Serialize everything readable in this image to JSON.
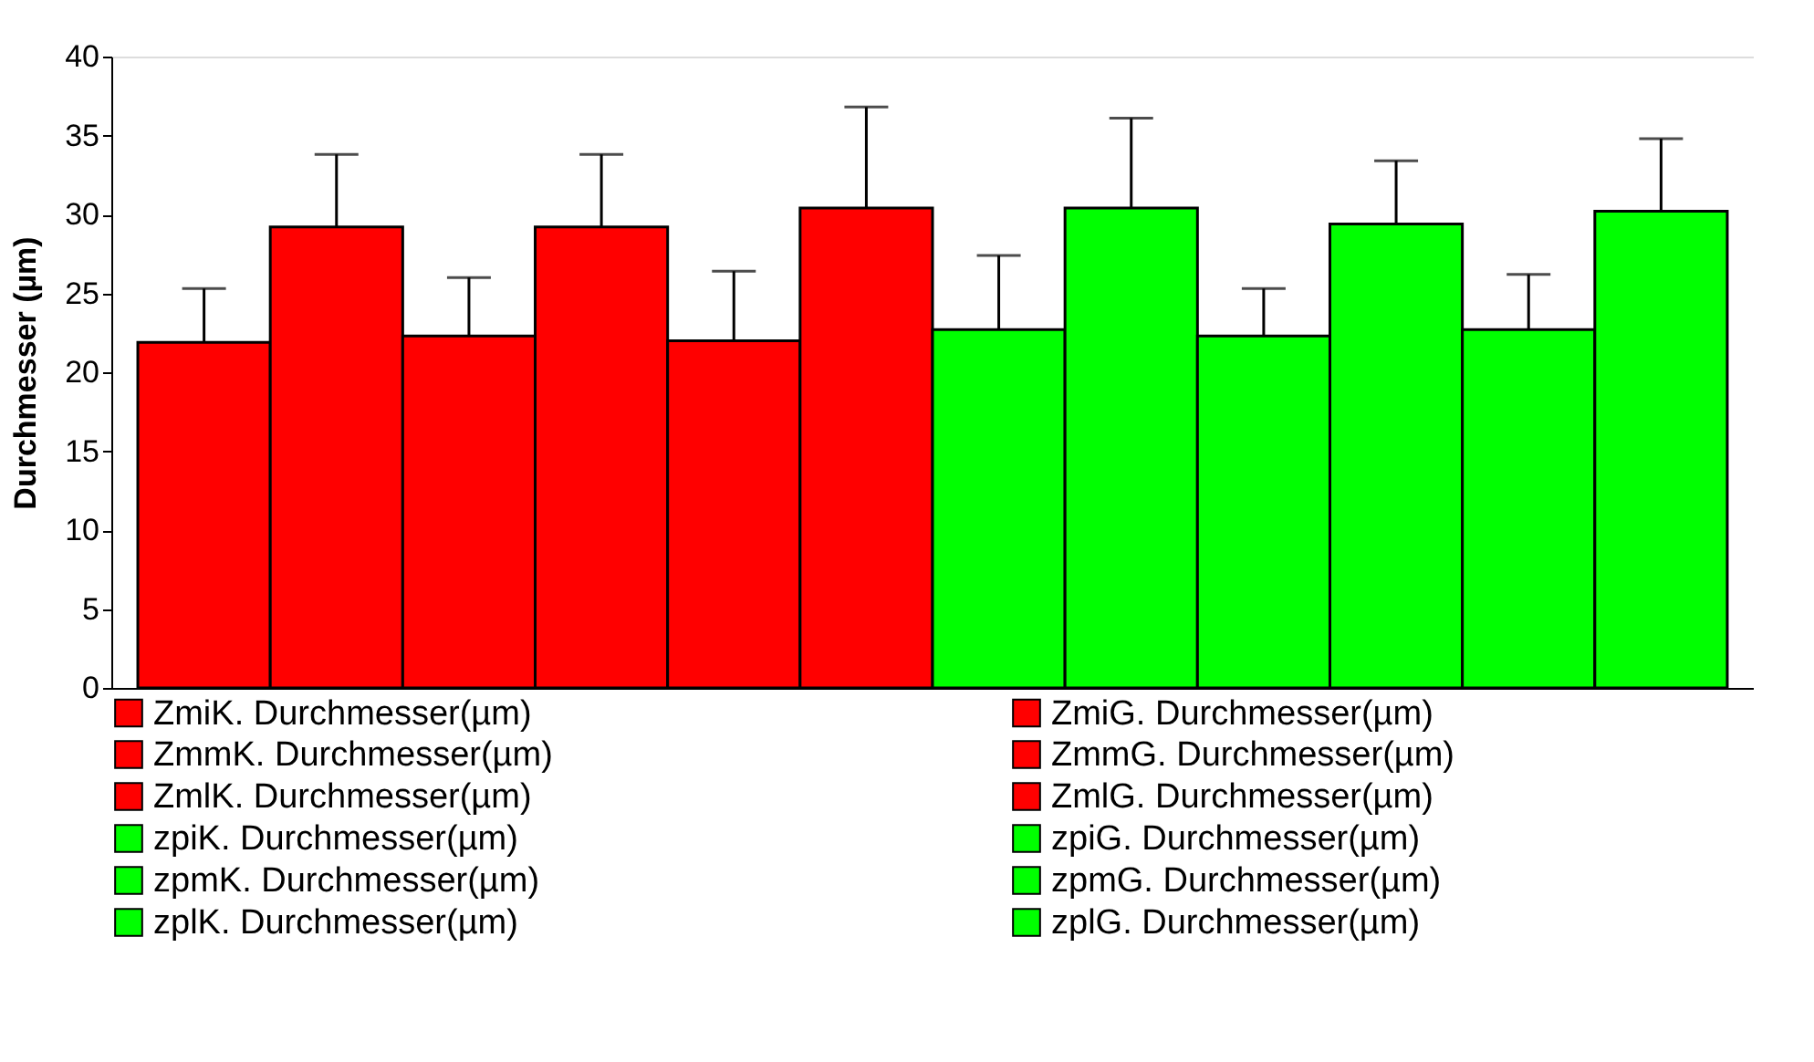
{
  "chart_data": {
    "type": "bar",
    "ylabel": "Durchmesser (µm)",
    "categories": [
      null,
      null,
      null,
      null,
      null,
      null,
      null,
      null,
      null,
      null,
      null,
      null
    ],
    "ylim": [
      0,
      40
    ],
    "yticks": [
      0,
      5,
      10,
      15,
      20,
      25,
      30,
      35,
      40
    ],
    "grid": false,
    "legend": "bottom",
    "series": [
      {
        "name": "ZmiK. Durchmesser(µm)",
        "color": "#ff0000",
        "values": [
          21.9,
          null,
          null,
          null,
          null,
          null,
          null,
          null,
          null,
          null,
          null,
          null
        ],
        "errors": [
          [
            21.9,
            25.3
          ],
          null,
          null,
          null,
          null,
          null,
          null,
          null,
          null,
          null,
          null,
          null
        ]
      },
      {
        "name": "ZmiG. Durchmesser(µm)",
        "color": "#ff0000",
        "values": [
          null,
          29.2,
          null,
          null,
          null,
          null,
          null,
          null,
          null,
          null,
          null,
          null
        ],
        "errors": [
          null,
          [
            29.2,
            33.8
          ],
          null,
          null,
          null,
          null,
          null,
          null,
          null,
          null,
          null,
          null
        ]
      },
      {
        "name": "ZmmK. Durchmesser(µm)",
        "color": "#ff0000",
        "values": [
          null,
          null,
          22.3,
          null,
          null,
          null,
          null,
          null,
          null,
          null,
          null,
          null
        ],
        "errors": [
          null,
          null,
          [
            22.3,
            26.0
          ],
          null,
          null,
          null,
          null,
          null,
          null,
          null,
          null,
          null
        ]
      },
      {
        "name": "ZmmG. Durchmesser(µm)",
        "color": "#ff0000",
        "values": [
          null,
          null,
          null,
          29.2,
          null,
          null,
          null,
          null,
          null,
          null,
          null,
          null
        ],
        "errors": [
          null,
          null,
          null,
          [
            29.2,
            33.8
          ],
          null,
          null,
          null,
          null,
          null,
          null,
          null,
          null
        ]
      },
      {
        "name": "ZmlK. Durchmesser(µm)",
        "color": "#ff0000",
        "values": [
          null,
          null,
          null,
          null,
          22.0,
          null,
          null,
          null,
          null,
          null,
          null,
          null
        ],
        "errors": [
          null,
          null,
          null,
          null,
          [
            22.0,
            26.4
          ],
          null,
          null,
          null,
          null,
          null,
          null,
          null
        ]
      },
      {
        "name": "ZmlG. Durchmesser(µm)",
        "color": "#ff0000",
        "values": [
          null,
          null,
          null,
          null,
          null,
          30.4,
          null,
          null,
          null,
          null,
          null,
          null
        ],
        "errors": [
          null,
          null,
          null,
          null,
          null,
          [
            30.4,
            36.8
          ],
          null,
          null,
          null,
          null,
          null,
          null
        ]
      },
      {
        "name": "zpiK. Durchmesser(µm)",
        "color": "#00ff00",
        "values": [
          null,
          null,
          null,
          null,
          null,
          null,
          22.7,
          null,
          null,
          null,
          null,
          null
        ],
        "errors": [
          null,
          null,
          null,
          null,
          null,
          null,
          [
            22.7,
            27.4
          ],
          null,
          null,
          null,
          null,
          null
        ]
      },
      {
        "name": "zpiG. Durchmesser(µm)",
        "color": "#00ff00",
        "values": [
          null,
          null,
          null,
          null,
          null,
          null,
          null,
          30.4,
          null,
          null,
          null,
          null
        ],
        "errors": [
          null,
          null,
          null,
          null,
          null,
          null,
          null,
          [
            30.4,
            36.1
          ],
          null,
          null,
          null,
          null
        ]
      },
      {
        "name": "zpmK. Durchmesser(µm)",
        "color": "#00ff00",
        "values": [
          null,
          null,
          null,
          null,
          null,
          null,
          null,
          null,
          22.3,
          null,
          null,
          null
        ],
        "errors": [
          null,
          null,
          null,
          null,
          null,
          null,
          null,
          null,
          [
            22.3,
            25.3
          ],
          null,
          null,
          null
        ]
      },
      {
        "name": "zpmG. Durchmesser(µm)",
        "color": "#00ff00",
        "values": [
          null,
          null,
          null,
          null,
          null,
          null,
          null,
          null,
          null,
          29.4,
          null,
          null
        ],
        "errors": [
          null,
          null,
          null,
          null,
          null,
          null,
          null,
          null,
          null,
          [
            29.4,
            33.4
          ],
          null,
          null
        ]
      },
      {
        "name": "zplK. Durchmesser(µm)",
        "color": "#00ff00",
        "values": [
          null,
          null,
          null,
          null,
          null,
          null,
          null,
          null,
          null,
          null,
          22.7,
          null
        ],
        "errors": [
          null,
          null,
          null,
          null,
          null,
          null,
          null,
          null,
          null,
          null,
          [
            22.7,
            26.2
          ],
          null
        ]
      },
      {
        "name": "zplG. Durchmesser(µm)",
        "color": "#00ff00",
        "values": [
          null,
          null,
          null,
          null,
          null,
          null,
          null,
          null,
          null,
          null,
          null,
          30.2
        ],
        "errors": [
          null,
          null,
          null,
          null,
          null,
          null,
          null,
          null,
          null,
          null,
          null,
          [
            30.2,
            34.8
          ]
        ]
      }
    ]
  }
}
